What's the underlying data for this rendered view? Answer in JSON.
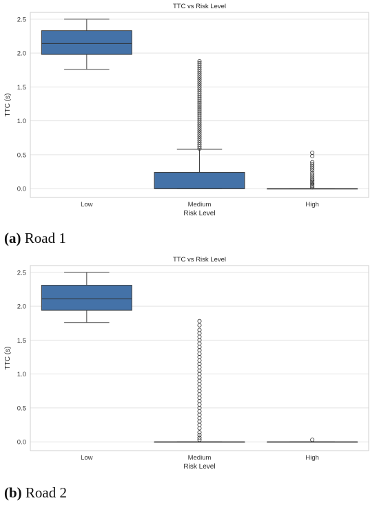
{
  "chart_data": [
    {
      "type": "box",
      "title": "TTC vs Risk Level",
      "xlabel": "Risk Level",
      "ylabel": "TTC (s)",
      "categories": [
        "Low",
        "Medium",
        "High"
      ],
      "ylim": [
        -0.13,
        2.6
      ],
      "yticks": [
        "0.0",
        "0.5",
        "1.0",
        "1.5",
        "2.0",
        "2.5"
      ],
      "grid": true,
      "box_color": "#4472a8",
      "boxes": [
        {
          "category": "Low",
          "whisker_low": 1.76,
          "q1": 1.98,
          "median": 2.14,
          "q3": 2.33,
          "whisker_high": 2.5,
          "outliers": []
        },
        {
          "category": "Medium",
          "whisker_low": 0.0,
          "q1": 0.0,
          "median": 0.0,
          "q3": 0.24,
          "whisker_high": 0.58,
          "outliers": [
            0.59,
            0.62,
            0.65,
            0.68,
            0.71,
            0.74,
            0.77,
            0.8,
            0.83,
            0.86,
            0.89,
            0.92,
            0.95,
            0.98,
            1.01,
            1.04,
            1.07,
            1.1,
            1.13,
            1.16,
            1.19,
            1.22,
            1.25,
            1.28,
            1.31,
            1.34,
            1.37,
            1.4,
            1.43,
            1.46,
            1.49,
            1.52,
            1.55,
            1.58,
            1.61,
            1.64,
            1.67,
            1.7,
            1.73,
            1.76,
            1.79,
            1.82,
            1.85,
            1.88
          ]
        },
        {
          "category": "High",
          "whisker_low": 0.0,
          "q1": 0.0,
          "median": 0.0,
          "q3": 0.0,
          "whisker_high": 0.0,
          "outliers": [
            0.02,
            0.04,
            0.06,
            0.08,
            0.1,
            0.12,
            0.14,
            0.17,
            0.2,
            0.23,
            0.27,
            0.3,
            0.33,
            0.36,
            0.39,
            0.48,
            0.53
          ]
        }
      ]
    },
    {
      "type": "box",
      "title": "TTC vs Risk Level",
      "xlabel": "Risk Level",
      "ylabel": "TTC (s)",
      "categories": [
        "Low",
        "Medium",
        "High"
      ],
      "ylim": [
        -0.13,
        2.6
      ],
      "yticks": [
        "0.0",
        "0.5",
        "1.0",
        "1.5",
        "2.0",
        "2.5"
      ],
      "grid": true,
      "box_color": "#4472a8",
      "boxes": [
        {
          "category": "Low",
          "whisker_low": 1.76,
          "q1": 1.94,
          "median": 2.11,
          "q3": 2.31,
          "whisker_high": 2.5,
          "outliers": []
        },
        {
          "category": "Medium",
          "whisker_low": 0.0,
          "q1": 0.0,
          "median": 0.0,
          "q3": 0.0,
          "whisker_high": 0.0,
          "outliers": [
            0.03,
            0.06,
            0.1,
            0.14,
            0.2,
            0.25,
            0.3,
            0.35,
            0.4,
            0.45,
            0.5,
            0.55,
            0.6,
            0.65,
            0.7,
            0.75,
            0.8,
            0.85,
            0.9,
            0.95,
            1.0,
            1.05,
            1.1,
            1.15,
            1.2,
            1.25,
            1.3,
            1.35,
            1.4,
            1.45,
            1.5,
            1.55,
            1.6,
            1.65,
            1.72,
            1.78
          ]
        },
        {
          "category": "High",
          "whisker_low": 0.0,
          "q1": 0.0,
          "median": 0.0,
          "q3": 0.0,
          "whisker_high": 0.0,
          "outliers": [
            0.03
          ]
        }
      ]
    }
  ],
  "captions": [
    {
      "letter": "(a)",
      "text": " Road 1"
    },
    {
      "letter": "(b)",
      "text": " Road 2"
    }
  ]
}
